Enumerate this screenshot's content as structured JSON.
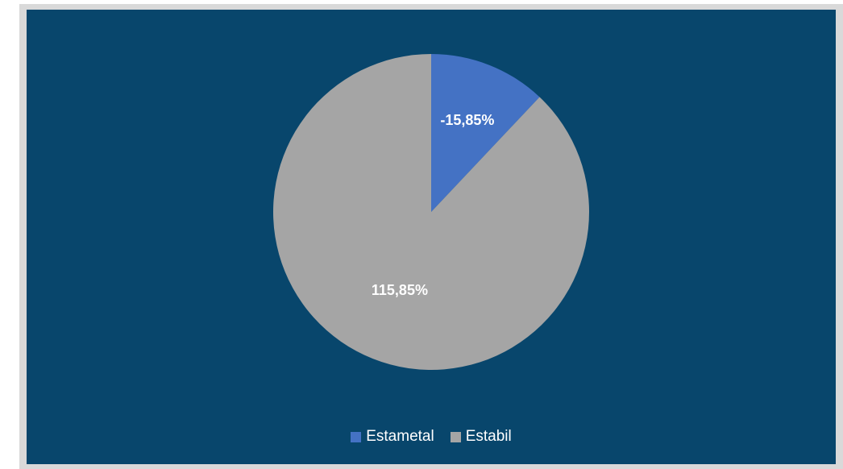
{
  "colors": {
    "background": "#08466c",
    "frame": "#d9d9d9",
    "series": [
      "#4472c4",
      "#a5a5a5"
    ],
    "label_text": "#ffffff"
  },
  "chart_data": {
    "type": "pie",
    "labels": [
      "Estametal",
      "Estabil"
    ],
    "values": [
      -15.85,
      115.85
    ],
    "data_labels": [
      "-15,85%",
      "115,85%"
    ],
    "unit": "%",
    "legend_position": "bottom",
    "start_angle_deg": 0,
    "direction": "clockwise"
  },
  "legend": {
    "items": [
      {
        "label": "Estametal"
      },
      {
        "label": "Estabil"
      }
    ]
  }
}
